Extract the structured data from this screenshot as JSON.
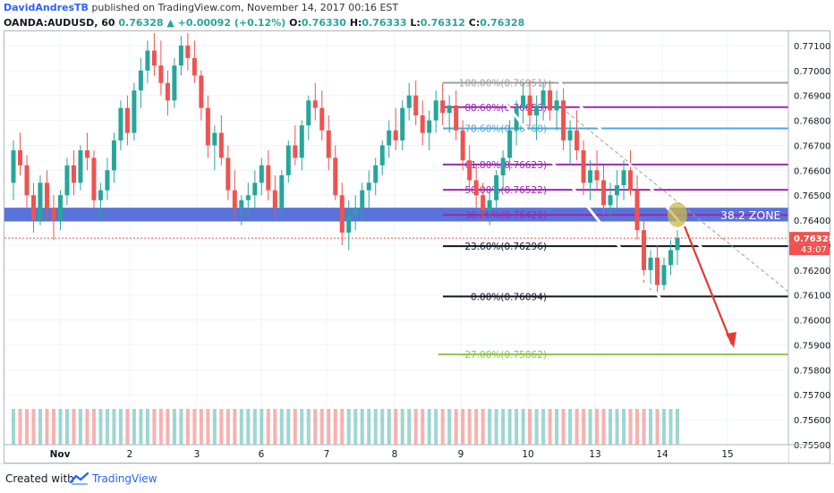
{
  "header": {
    "author": "DavidAndresTB",
    "published": "published on TradingView.com, November 14, 2017 00:16 EST",
    "symbol": "OANDA:AUDUSD, 60",
    "last": "0.76328",
    "change": "+0.00092 (+0.12%)",
    "o_label": "O:",
    "o_value": "0.76330",
    "h_label": "H:",
    "h_value": "0.76333",
    "l_label": "L:",
    "l_value": "0.76312",
    "c_label": "C:",
    "c_value": "0.76328"
  },
  "footer": {
    "created_with": "Created with",
    "brand": "TradingView"
  },
  "colors": {
    "bull": "#26a69a",
    "bear": "#ef5350",
    "zone": "#2a4bd0",
    "fib_purple": "#9c27b0",
    "fib_blue": "#4fa6e0",
    "fib_green": "#8bc34a",
    "fib_gray": "#9e9e9e",
    "arrow": "#e53935",
    "price_tag": "#ef5350"
  },
  "chart_data": {
    "type": "candlestick",
    "symbol": "OANDA:AUDUSD",
    "timeframe": "60",
    "ylim": [
      0.755,
      0.7715
    ],
    "x_tick_labels": [
      "Nov",
      "2",
      "3",
      "6",
      "7",
      "8",
      "9",
      "10",
      "13",
      "14",
      "15"
    ],
    "y_tick_labels": [
      "0.77100",
      "0.77000",
      "0.76900",
      "0.76800",
      "0.76700",
      "0.76600",
      "0.76500",
      "0.76400",
      "0.76300",
      "0.76200",
      "0.76100",
      "0.76000",
      "0.75900",
      "0.75800",
      "0.75700",
      "0.75600",
      "0.75500"
    ],
    "y_ticks": [
      0.771,
      0.77,
      0.769,
      0.768,
      0.767,
      0.766,
      0.765,
      0.764,
      0.763,
      0.762,
      0.761,
      0.76,
      0.759,
      0.758,
      0.757,
      0.756,
      0.755
    ],
    "last_price": 0.76328,
    "last_price_label": "0.76328",
    "countdown_label": "43:07",
    "fib_levels": [
      {
        "label": "100.00%(0.76951)",
        "price": 0.76951,
        "color": "#9e9e9e"
      },
      {
        "label": "88.60%(0.76853)",
        "price": 0.76853,
        "color": "#9c27b0"
      },
      {
        "label": "78.60%(0.76768)",
        "price": 0.76768,
        "color": "#4fa6e0"
      },
      {
        "label": "61.80%(0.76623)",
        "price": 0.76623,
        "color": "#9c27b0"
      },
      {
        "label": "50.00%(0.76522)",
        "price": 0.76522,
        "color": "#9c27b0"
      },
      {
        "label": "38.20%(0.76421)",
        "price": 0.76421,
        "color": "#9c27b0"
      },
      {
        "label": "23.60%(0.76296)",
        "price": 0.76296,
        "color": "#131722"
      },
      {
        "label": "0.00%(0.76094)",
        "price": 0.76094,
        "color": "#131722"
      },
      {
        "label": "-27.00%(0.75862)",
        "price": 0.75862,
        "color": "#8bc34a"
      }
    ],
    "zone": {
      "label": "38.2 ZONE",
      "top": 0.7645,
      "bottom": 0.76395
    },
    "candles": [
      [
        0.7655,
        0.7672,
        0.7648,
        0.7668
      ],
      [
        0.7668,
        0.7675,
        0.7658,
        0.7662
      ],
      [
        0.7662,
        0.7666,
        0.7645,
        0.765
      ],
      [
        0.765,
        0.7655,
        0.7635,
        0.764
      ],
      [
        0.764,
        0.7658,
        0.7638,
        0.7655
      ],
      [
        0.7655,
        0.766,
        0.764,
        0.7645
      ],
      [
        0.7645,
        0.765,
        0.7632,
        0.764
      ],
      [
        0.764,
        0.7652,
        0.7636,
        0.765
      ],
      [
        0.765,
        0.7665,
        0.7646,
        0.7662
      ],
      [
        0.7662,
        0.7668,
        0.765,
        0.7655
      ],
      [
        0.7655,
        0.767,
        0.7652,
        0.7668
      ],
      [
        0.7668,
        0.7675,
        0.766,
        0.7665
      ],
      [
        0.7665,
        0.7668,
        0.7645,
        0.7648
      ],
      [
        0.7648,
        0.7655,
        0.764,
        0.7652
      ],
      [
        0.7652,
        0.7665,
        0.7648,
        0.766
      ],
      [
        0.766,
        0.7675,
        0.7655,
        0.7672
      ],
      [
        0.7672,
        0.7688,
        0.7668,
        0.7685
      ],
      [
        0.7685,
        0.769,
        0.767,
        0.7675
      ],
      [
        0.7675,
        0.7695,
        0.7672,
        0.7692
      ],
      [
        0.7692,
        0.7705,
        0.7685,
        0.77
      ],
      [
        0.77,
        0.7712,
        0.7695,
        0.7708
      ],
      [
        0.7708,
        0.7715,
        0.7698,
        0.7702
      ],
      [
        0.7702,
        0.7712,
        0.769,
        0.7695
      ],
      [
        0.7695,
        0.77,
        0.7682,
        0.7688
      ],
      [
        0.7688,
        0.7705,
        0.7685,
        0.7702
      ],
      [
        0.7702,
        0.7714,
        0.7698,
        0.771
      ],
      [
        0.771,
        0.7715,
        0.77,
        0.7705
      ],
      [
        0.7705,
        0.7712,
        0.7695,
        0.7698
      ],
      [
        0.7698,
        0.77,
        0.768,
        0.7685
      ],
      [
        0.7685,
        0.769,
        0.7665,
        0.767
      ],
      [
        0.767,
        0.7678,
        0.766,
        0.7675
      ],
      [
        0.7675,
        0.7682,
        0.7662,
        0.7665
      ],
      [
        0.7665,
        0.767,
        0.7648,
        0.7652
      ],
      [
        0.7652,
        0.766,
        0.764,
        0.7645
      ],
      [
        0.7645,
        0.765,
        0.7638,
        0.7648
      ],
      [
        0.7648,
        0.7655,
        0.7642,
        0.765
      ],
      [
        0.765,
        0.766,
        0.7645,
        0.7655
      ],
      [
        0.7655,
        0.7665,
        0.765,
        0.7662
      ],
      [
        0.7662,
        0.7668,
        0.7648,
        0.7652
      ],
      [
        0.7652,
        0.7658,
        0.764,
        0.7645
      ],
      [
        0.7645,
        0.766,
        0.7642,
        0.7658
      ],
      [
        0.7658,
        0.7672,
        0.7655,
        0.767
      ],
      [
        0.767,
        0.7678,
        0.7662,
        0.7665
      ],
      [
        0.7665,
        0.768,
        0.766,
        0.7678
      ],
      [
        0.7678,
        0.769,
        0.7672,
        0.7688
      ],
      [
        0.7688,
        0.7695,
        0.768,
        0.7685
      ],
      [
        0.7685,
        0.7692,
        0.7672,
        0.7676
      ],
      [
        0.7676,
        0.7682,
        0.766,
        0.7665
      ],
      [
        0.7665,
        0.767,
        0.7648,
        0.765
      ],
      [
        0.765,
        0.7655,
        0.763,
        0.7635
      ],
      [
        0.7635,
        0.7648,
        0.7628,
        0.7642
      ],
      [
        0.7642,
        0.765,
        0.7636,
        0.7645
      ],
      [
        0.7645,
        0.7655,
        0.764,
        0.7652
      ],
      [
        0.7652,
        0.766,
        0.7645,
        0.7655
      ],
      [
        0.7655,
        0.7665,
        0.765,
        0.7662
      ],
      [
        0.7662,
        0.7672,
        0.7658,
        0.767
      ],
      [
        0.767,
        0.768,
        0.7665,
        0.7676
      ],
      [
        0.7676,
        0.7685,
        0.7668,
        0.7672
      ],
      [
        0.7672,
        0.7688,
        0.7668,
        0.7685
      ],
      [
        0.7685,
        0.7695,
        0.768,
        0.769
      ],
      [
        0.769,
        0.7696,
        0.7678,
        0.7682
      ],
      [
        0.7682,
        0.7688,
        0.767,
        0.7675
      ],
      [
        0.7675,
        0.7684,
        0.7668,
        0.768
      ],
      [
        0.768,
        0.7692,
        0.7675,
        0.7688
      ],
      [
        0.7688,
        0.7695,
        0.7678,
        0.7683
      ],
      [
        0.7683,
        0.769,
        0.7675,
        0.7686
      ],
      [
        0.7686,
        0.7692,
        0.7672,
        0.7676
      ],
      [
        0.7676,
        0.768,
        0.766,
        0.7664
      ],
      [
        0.7664,
        0.767,
        0.7652,
        0.7656
      ],
      [
        0.7656,
        0.7662,
        0.7645,
        0.765
      ],
      [
        0.765,
        0.7655,
        0.764,
        0.7644
      ],
      [
        0.7644,
        0.7652,
        0.7638,
        0.7648
      ],
      [
        0.7648,
        0.766,
        0.7645,
        0.7658
      ],
      [
        0.7658,
        0.7668,
        0.7652,
        0.7665
      ],
      [
        0.7665,
        0.768,
        0.766,
        0.7676
      ],
      [
        0.7676,
        0.7688,
        0.767,
        0.7685
      ],
      [
        0.7685,
        0.7695,
        0.7678,
        0.769
      ],
      [
        0.769,
        0.7696,
        0.7678,
        0.7682
      ],
      [
        0.7682,
        0.769,
        0.7672,
        0.7686
      ],
      [
        0.7686,
        0.7695,
        0.768,
        0.7692
      ],
      [
        0.7692,
        0.7696,
        0.768,
        0.7684
      ],
      [
        0.7684,
        0.7692,
        0.7676,
        0.7688
      ],
      [
        0.7688,
        0.7695,
        0.7668,
        0.7672
      ],
      [
        0.7672,
        0.768,
        0.7662,
        0.7676
      ],
      [
        0.7676,
        0.7684,
        0.7664,
        0.7668
      ],
      [
        0.7668,
        0.7672,
        0.765,
        0.7655
      ],
      [
        0.7655,
        0.7664,
        0.7648,
        0.766
      ],
      [
        0.766,
        0.7668,
        0.7652,
        0.7656
      ],
      [
        0.7656,
        0.7662,
        0.7642,
        0.7646
      ],
      [
        0.7646,
        0.7655,
        0.764,
        0.765
      ],
      [
        0.765,
        0.766,
        0.7645,
        0.7654
      ],
      [
        0.7654,
        0.7664,
        0.7648,
        0.766
      ],
      [
        0.766,
        0.7668,
        0.765,
        0.7652
      ],
      [
        0.7652,
        0.7658,
        0.7632,
        0.7636
      ],
      [
        0.7636,
        0.764,
        0.7615,
        0.762
      ],
      [
        0.762,
        0.7628,
        0.7612,
        0.7625
      ],
      [
        0.7625,
        0.763,
        0.761,
        0.7614
      ],
      [
        0.7614,
        0.7625,
        0.7612,
        0.7622
      ],
      [
        0.7622,
        0.7632,
        0.7618,
        0.7628
      ],
      [
        0.7628,
        0.7636,
        0.7622,
        0.7633
      ]
    ]
  }
}
